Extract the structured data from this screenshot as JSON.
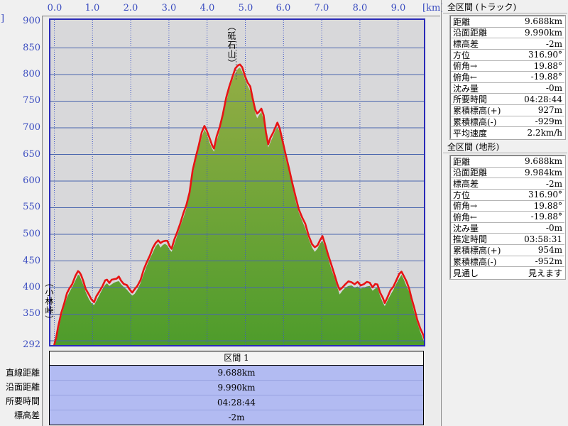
{
  "chart": {
    "x_unit_label": "[km]",
    "y_axis_unit_clipped": "]",
    "x_ticks": [
      "0.0",
      "1.0",
      "2.0",
      "3.0",
      "4.0",
      "5.0",
      "6.0",
      "7.0",
      "8.0",
      "9.0"
    ],
    "y_ticks": [
      "900",
      "850",
      "800",
      "750",
      "700",
      "650",
      "600",
      "550",
      "500",
      "450",
      "400",
      "350",
      "292"
    ],
    "annotations": [
      {
        "text": "（砥石山）",
        "type": "peak"
      },
      {
        "text": "（小林峠）",
        "type": "pass"
      }
    ],
    "colors": {
      "plot_background": "#d8d8da",
      "frame": "#2a2ab8",
      "h_grid": "#4a66ad",
      "v_grid": "#3f55c9",
      "terrain_top": "#93ad45",
      "terrain_bottom": "#4e9c2b",
      "track_line": "#e71414",
      "tick_text": "#3a4cc0"
    }
  },
  "chart_data": {
    "type": "area",
    "xlabel": "[km]",
    "xlim": [
      0,
      9.74
    ],
    "ylim": [
      292,
      900
    ],
    "grid": true,
    "x_tick_values": [
      0,
      1,
      2,
      3,
      4,
      5,
      6,
      7,
      8,
      9
    ],
    "y_tick_values": [
      900,
      850,
      800,
      750,
      700,
      650,
      600,
      550,
      500,
      450,
      400,
      350,
      292
    ],
    "annotations": [
      {
        "text": "（砥石山）",
        "km": 4.76,
        "elevation_m": 820
      },
      {
        "text": "（小林峠）",
        "km": 0.05,
        "elevation_m": 300
      }
    ],
    "series": [
      {
        "name": "track_elevation_profile",
        "points_km_m": [
          [
            0.0,
            293
          ],
          [
            0.05,
            308
          ],
          [
            0.1,
            325
          ],
          [
            0.18,
            352
          ],
          [
            0.26,
            372
          ],
          [
            0.33,
            388
          ],
          [
            0.4,
            399
          ],
          [
            0.47,
            408
          ],
          [
            0.55,
            420
          ],
          [
            0.62,
            431
          ],
          [
            0.66,
            430
          ],
          [
            0.7,
            422
          ],
          [
            0.76,
            412
          ],
          [
            0.82,
            399
          ],
          [
            0.9,
            386
          ],
          [
            0.97,
            378
          ],
          [
            1.04,
            374
          ],
          [
            1.1,
            382
          ],
          [
            1.18,
            393
          ],
          [
            1.26,
            404
          ],
          [
            1.33,
            412
          ],
          [
            1.38,
            415
          ],
          [
            1.44,
            410
          ],
          [
            1.5,
            413
          ],
          [
            1.56,
            416
          ],
          [
            1.63,
            418
          ],
          [
            1.69,
            419
          ],
          [
            1.75,
            413
          ],
          [
            1.82,
            408
          ],
          [
            1.9,
            403
          ],
          [
            1.97,
            397
          ],
          [
            2.04,
            392
          ],
          [
            2.1,
            395
          ],
          [
            2.18,
            404
          ],
          [
            2.26,
            416
          ],
          [
            2.34,
            432
          ],
          [
            2.42,
            448
          ],
          [
            2.5,
            461
          ],
          [
            2.58,
            473
          ],
          [
            2.65,
            484
          ],
          [
            2.72,
            490
          ],
          [
            2.78,
            482
          ],
          [
            2.84,
            487
          ],
          [
            2.9,
            489
          ],
          [
            2.96,
            486
          ],
          [
            3.02,
            478
          ],
          [
            3.07,
            474
          ],
          [
            3.14,
            488
          ],
          [
            3.22,
            505
          ],
          [
            3.3,
            522
          ],
          [
            3.38,
            538
          ],
          [
            3.46,
            556
          ],
          [
            3.54,
            580
          ],
          [
            3.62,
            618
          ],
          [
            3.7,
            645
          ],
          [
            3.78,
            668
          ],
          [
            3.86,
            690
          ],
          [
            3.93,
            704
          ],
          [
            3.99,
            696
          ],
          [
            4.06,
            680
          ],
          [
            4.13,
            668
          ],
          [
            4.18,
            662
          ],
          [
            4.25,
            682
          ],
          [
            4.33,
            702
          ],
          [
            4.41,
            726
          ],
          [
            4.5,
            755
          ],
          [
            4.58,
            778
          ],
          [
            4.66,
            796
          ],
          [
            4.74,
            810
          ],
          [
            4.81,
            818
          ],
          [
            4.86,
            820
          ],
          [
            4.92,
            812
          ],
          [
            4.99,
            798
          ],
          [
            5.06,
            786
          ],
          [
            5.13,
            776
          ],
          [
            5.19,
            757
          ],
          [
            5.26,
            735
          ],
          [
            5.31,
            725
          ],
          [
            5.36,
            731
          ],
          [
            5.42,
            737
          ],
          [
            5.48,
            722
          ],
          [
            5.54,
            692
          ],
          [
            5.6,
            670
          ],
          [
            5.66,
            680
          ],
          [
            5.73,
            692
          ],
          [
            5.8,
            704
          ],
          [
            5.84,
            708
          ],
          [
            5.9,
            700
          ],
          [
            5.97,
            678
          ],
          [
            6.05,
            650
          ],
          [
            6.14,
            626
          ],
          [
            6.23,
            597
          ],
          [
            6.32,
            568
          ],
          [
            6.4,
            548
          ],
          [
            6.49,
            532
          ],
          [
            6.57,
            518
          ],
          [
            6.66,
            498
          ],
          [
            6.75,
            482
          ],
          [
            6.82,
            474
          ],
          [
            6.89,
            480
          ],
          [
            6.96,
            490
          ],
          [
            7.02,
            495
          ],
          [
            7.09,
            482
          ],
          [
            7.17,
            462
          ],
          [
            7.25,
            442
          ],
          [
            7.33,
            426
          ],
          [
            7.41,
            407
          ],
          [
            7.47,
            394
          ],
          [
            7.54,
            401
          ],
          [
            7.62,
            407
          ],
          [
            7.7,
            410
          ],
          [
            7.78,
            411
          ],
          [
            7.86,
            407
          ],
          [
            7.94,
            409
          ],
          [
            8.02,
            405
          ],
          [
            8.1,
            407
          ],
          [
            8.18,
            409
          ],
          [
            8.26,
            410
          ],
          [
            8.33,
            401
          ],
          [
            8.4,
            405
          ],
          [
            8.46,
            407
          ],
          [
            8.53,
            391
          ],
          [
            8.6,
            379
          ],
          [
            8.65,
            372
          ],
          [
            8.72,
            382
          ],
          [
            8.8,
            393
          ],
          [
            8.88,
            403
          ],
          [
            8.96,
            415
          ],
          [
            9.03,
            424
          ],
          [
            9.09,
            431
          ],
          [
            9.15,
            422
          ],
          [
            9.22,
            410
          ],
          [
            9.29,
            399
          ],
          [
            9.35,
            381
          ],
          [
            9.42,
            361
          ],
          [
            9.5,
            341
          ],
          [
            9.58,
            324
          ],
          [
            9.66,
            309
          ],
          [
            9.72,
            298
          ],
          [
            9.76,
            294
          ]
        ]
      }
    ]
  },
  "section_table": {
    "header": "区間 1",
    "rows": [
      {
        "label": "直線距離",
        "value": "9.688km"
      },
      {
        "label": "沿面距離",
        "value": "9.990km"
      },
      {
        "label": "所要時間",
        "value": "04:28:44"
      },
      {
        "label": "標高差",
        "value": "-2m"
      }
    ]
  },
  "panels": [
    {
      "title": "全区間 (トラック)",
      "rows": [
        {
          "label": "距離",
          "value": "9.688km"
        },
        {
          "label": "沿面距離",
          "value": "9.990km"
        },
        {
          "label": "標高差",
          "value": "-2m"
        },
        {
          "label": "方位",
          "value": "316.90°"
        },
        {
          "label": "俯角→",
          "value": "19.88°"
        },
        {
          "label": "俯角←",
          "value": "-19.88°"
        },
        {
          "label": "沈み量",
          "value": "-0m"
        },
        {
          "label": "所要時間",
          "value": "04:28:44"
        },
        {
          "label": "累積標高(+)",
          "value": "927m"
        },
        {
          "label": "累積標高(-)",
          "value": "-929m"
        },
        {
          "label": "平均速度",
          "value": "2.2km/h"
        }
      ]
    },
    {
      "title": "全区間 (地形)",
      "rows": [
        {
          "label": "距離",
          "value": "9.688km"
        },
        {
          "label": "沿面距離",
          "value": "9.984km"
        },
        {
          "label": "標高差",
          "value": "-2m"
        },
        {
          "label": "方位",
          "value": "316.90°"
        },
        {
          "label": "俯角→",
          "value": "19.88°"
        },
        {
          "label": "俯角←",
          "value": "-19.88°"
        },
        {
          "label": "沈み量",
          "value": "-0m"
        },
        {
          "label": "推定時間",
          "value": "03:58:31"
        },
        {
          "label": "累積標高(+)",
          "value": "954m"
        },
        {
          "label": "累積標高(-)",
          "value": "-952m"
        },
        {
          "label": "見通し",
          "value": "見えます"
        }
      ]
    }
  ]
}
